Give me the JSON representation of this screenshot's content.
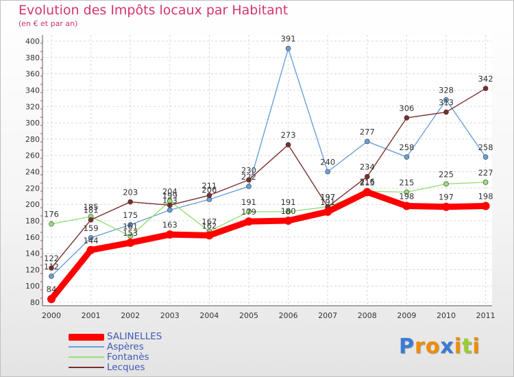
{
  "chart_data": {
    "type": "line",
    "title": "Evolution des Impôts locaux par Habitant",
    "subtitle": "(en € et par an)",
    "x": [
      "2000",
      "2001",
      "2002",
      "2003",
      "2004",
      "2005",
      "2006",
      "2007",
      "2008",
      "2009",
      "2010",
      "2011"
    ],
    "ylim": [
      80,
      400
    ],
    "yticks": [
      80,
      100,
      120,
      140,
      160,
      180,
      200,
      220,
      240,
      260,
      280,
      300,
      320,
      340,
      360,
      380,
      400
    ],
    "series": [
      {
        "name": "SALINELLES",
        "color": "#ff0000",
        "values": [
          84,
          144,
          153,
          163,
          162,
          179,
          180,
          191,
          215,
          198,
          197,
          198
        ]
      },
      {
        "name": "Aspères",
        "color": "#6a9fd8",
        "values": [
          112,
          159,
          175,
          193,
          206,
          222,
          391,
          240,
          277,
          258,
          328,
          258
        ]
      },
      {
        "name": "Fontanès",
        "color": "#99dd77",
        "values": [
          176,
          185,
          161,
          204,
          167,
          191,
          191,
          197,
          216,
          215,
          225,
          227
        ]
      },
      {
        "name": "Lecques",
        "color": "#7a2e2e",
        "values": [
          122,
          181,
          203,
          199,
          211,
          230,
          273,
          197,
          234,
          306,
          313,
          342
        ]
      }
    ]
  },
  "brand": {
    "letters": [
      "P",
      "r",
      "o",
      "x",
      "i",
      "t",
      "i"
    ],
    "colors": [
      "#3a7bd5",
      "#f08c00",
      "#f08c00",
      "#3a7bd5",
      "#f08c00",
      "#9acd32",
      "#f08c00"
    ]
  }
}
